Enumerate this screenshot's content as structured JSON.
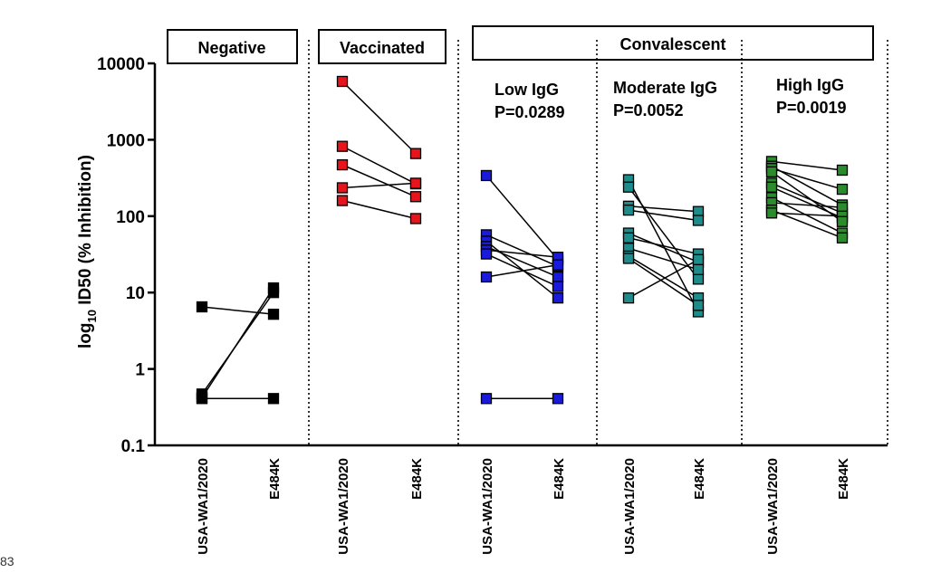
{
  "page_number": "83",
  "chart_data": {
    "type": "scatter",
    "ylabel_main": "log",
    "ylabel_sub": "10",
    "ylabel_rest": " ID50 (% Inhibition)",
    "yscale": "log",
    "ylim": [
      0.1,
      10000
    ],
    "y_ticks": [
      "0.1",
      "1",
      "10",
      "100",
      "1000",
      "10000"
    ],
    "headers": {
      "negative": "Negative",
      "vaccinated": "Vaccinated",
      "convalescent": "Convalescent"
    },
    "groups": [
      {
        "name": "Negative",
        "color": "#000000",
        "title_lines": [],
        "x_labels": [
          "USA-WA1/2020",
          "E484K"
        ],
        "pairs": [
          [
            6.5,
            5.2
          ],
          [
            0.47,
            10.0
          ],
          [
            0.42,
            11.5
          ],
          [
            0.41,
            0.41
          ]
        ]
      },
      {
        "name": "Vaccinated",
        "color": "#e8141c",
        "title_lines": [],
        "x_labels": [
          "USA-WA1/2020",
          "E484K"
        ],
        "pairs": [
          [
            5800,
            660
          ],
          [
            820,
            265
          ],
          [
            470,
            180
          ],
          [
            235,
            270
          ],
          [
            160,
            93
          ]
        ]
      },
      {
        "name": "Low IgG",
        "color": "#1a1adc",
        "title_lines": [
          "Low IgG",
          "P=0.0289"
        ],
        "x_labels": [
          "USA-WA1/2020",
          "E484K"
        ],
        "pairs": [
          [
            340,
            27
          ],
          [
            57,
            22
          ],
          [
            47,
            8.5
          ],
          [
            40,
            16
          ],
          [
            36,
            29
          ],
          [
            32,
            12
          ],
          [
            16,
            23
          ],
          [
            0.41,
            0.41
          ]
        ]
      },
      {
        "name": "Moderate IgG",
        "color": "#1f8c8c",
        "title_lines": [
          "Moderate IgG",
          "P=0.0052"
        ],
        "x_labels": [
          "USA-WA1/2020",
          "E484K"
        ],
        "pairs": [
          [
            300,
            5.6
          ],
          [
            240,
            15
          ],
          [
            135,
            115
          ],
          [
            120,
            88
          ],
          [
            60,
            25
          ],
          [
            52,
            32
          ],
          [
            38,
            20
          ],
          [
            30,
            8.5
          ],
          [
            8.5,
            27
          ],
          [
            28,
            6.8
          ]
        ]
      },
      {
        "name": "High IgG",
        "color": "#2a8c2a",
        "title_lines": [
          "High IgG",
          "P=0.0019"
        ],
        "x_labels": [
          "USA-WA1/2020",
          "E484K"
        ],
        "pairs": [
          [
            520,
            400
          ],
          [
            450,
            140
          ],
          [
            420,
            225
          ],
          [
            270,
            110
          ],
          [
            240,
            95
          ],
          [
            175,
            60
          ],
          [
            150,
            130
          ],
          [
            120,
            52
          ],
          [
            110,
            100
          ],
          [
            380,
            85
          ]
        ]
      }
    ]
  }
}
